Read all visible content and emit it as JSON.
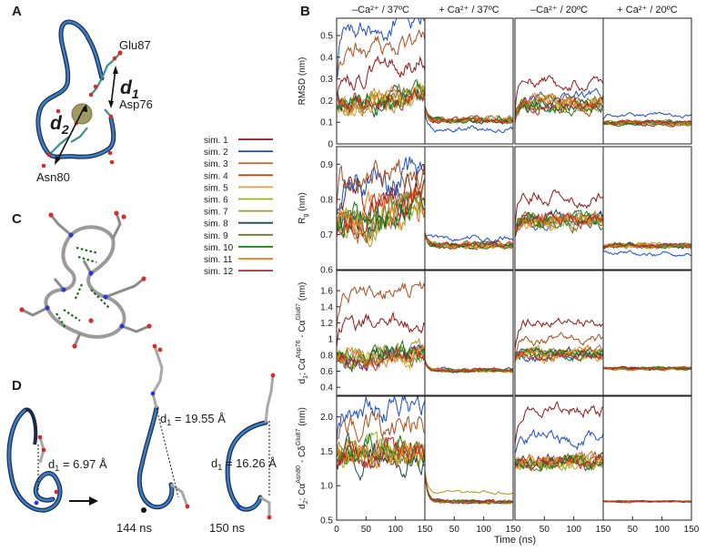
{
  "panel_labels": {
    "A": "A",
    "B": "B",
    "C": "C",
    "D": "D"
  },
  "panel_a": {
    "residues": [
      "Glu87",
      "Asp76",
      "Asn80"
    ],
    "distance_labels": {
      "d1_main": "d",
      "d1_sub": "1",
      "d2_main": "d",
      "d2_sub": "2"
    }
  },
  "panel_d": {
    "distances": [
      {
        "prefix": "d",
        "sub": "1",
        "value": " = 6.97 Å"
      },
      {
        "prefix": "d",
        "sub": "1",
        "value": " = 19.55 Å"
      },
      {
        "prefix": "d",
        "sub": "1",
        "value": " = 16.26 Å"
      }
    ],
    "times": [
      "144 ns",
      "150 ns"
    ]
  },
  "legend": [
    {
      "label": "sim. 1",
      "color": "#8b1a1a"
    },
    {
      "label": "sim. 2",
      "color": "#1f4fbf"
    },
    {
      "label": "sim. 3",
      "color": "#c0703a"
    },
    {
      "label": "sim. 4",
      "color": "#a4501f"
    },
    {
      "label": "sim. 5",
      "color": "#e0a030"
    },
    {
      "label": "sim. 6",
      "color": "#9ab030"
    },
    {
      "label": "sim. 7",
      "color": "#a89a2a"
    },
    {
      "label": "sim. 8",
      "color": "#1f4a4a"
    },
    {
      "label": "sim. 9",
      "color": "#6a7a2a"
    },
    {
      "label": "sim. 10",
      "color": "#1a7a1a"
    },
    {
      "label": "sim. 11",
      "color": "#f07a1a"
    },
    {
      "label": "sim. 12",
      "color": "#b02a2a"
    }
  ],
  "chart_data": {
    "type": "line",
    "title": "",
    "column_titles": [
      "–Ca²⁺ / 37ºC",
      "+ Ca²⁺ / 37ºC",
      "–Ca²⁺ / 20ºC",
      "+ Ca²⁺ / 20ºC"
    ],
    "xlabel": "Time (ns)",
    "xlim": [
      0,
      150
    ],
    "xticks_first": [
      "0",
      "50",
      "100",
      "150"
    ],
    "xticks_other": [
      "50",
      "100",
      "150"
    ],
    "n_series": 12,
    "rows": [
      {
        "ylabel": "RMSD (nm)",
        "ylim": [
          0,
          0.58
        ],
        "yticks": [
          "0",
          "0.1",
          "0.2",
          "0.3",
          "0.4",
          "0.5"
        ],
        "ytick_values": [
          0,
          0.1,
          0.2,
          0.3,
          0.4,
          0.5
        ],
        "panels": [
          {
            "start": 0.2,
            "mean": 0.24,
            "spread": 0.07,
            "drift": 0.1,
            "noise": 0.03,
            "outliers": [
              [
                1,
                0.55
              ],
              [
                3,
                0.45
              ],
              [
                0,
                0.35
              ]
            ]
          },
          {
            "start": 0.2,
            "mean": 0.12,
            "spread": 0.025,
            "drift": 0,
            "noise": 0.008,
            "outliers": [
              [
                1,
                0.07
              ]
            ]
          },
          {
            "start": 0.07,
            "mean": 0.2,
            "spread": 0.045,
            "drift": 0,
            "noise": 0.018,
            "outliers": [
              [
                0,
                0.28
              ],
              [
                1,
                0.22
              ]
            ]
          },
          {
            "start": 0.1,
            "mean": 0.1,
            "spread": 0.012,
            "drift": 0,
            "noise": 0.006,
            "outliers": [
              [
                1,
                0.13
              ]
            ]
          }
        ]
      },
      {
        "ylabel": "Rg (nm)",
        "ylim": [
          0.6,
          0.95
        ],
        "yticks": [
          "0.6",
          "0.7",
          "0.8",
          "0.9"
        ],
        "ytick_values": [
          0.6,
          0.7,
          0.8,
          0.9
        ],
        "panels": [
          {
            "start": 0.72,
            "mean": 0.75,
            "spread": 0.04,
            "drift": 0.06,
            "noise": 0.03,
            "outliers": [
              [
                3,
                0.88
              ],
              [
                1,
                0.85
              ],
              [
                0,
                0.82
              ]
            ]
          },
          {
            "start": 0.72,
            "mean": 0.665,
            "spread": 0.012,
            "drift": 0,
            "noise": 0.005,
            "outliers": [
              [
                1,
                0.69
              ]
            ]
          },
          {
            "start": 0.68,
            "mean": 0.73,
            "spread": 0.025,
            "drift": 0,
            "noise": 0.012,
            "outliers": [
              [
                0,
                0.81
              ]
            ]
          },
          {
            "start": 0.66,
            "mean": 0.665,
            "spread": 0.008,
            "drift": 0,
            "noise": 0.004,
            "outliers": [
              [
                1,
                0.645
              ]
            ]
          }
        ]
      },
      {
        "ylabel": "d1; Cα Asp76 - Cα Glu87 (nm)",
        "ylabel_parts": {
          "main": "d",
          "sub": "1",
          "mid": "; Cα",
          "sup1": "Asp76",
          "dash": " - Cα",
          "sup2": "Glu87",
          "unit": " (nm)"
        },
        "ylim": [
          0.3,
          1.85
        ],
        "yticks": [
          "0.4",
          "0.6",
          "0.8",
          "1",
          "1.2",
          "1.4",
          "1.6"
        ],
        "ytick_values": [
          0.4,
          0.6,
          0.8,
          1.0,
          1.2,
          1.4,
          1.6
        ],
        "panels": [
          {
            "start": 0.8,
            "mean": 0.95,
            "spread": 0.16,
            "drift": 0.12,
            "noise": 0.07,
            "outliers": [
              [
                3,
                1.6
              ],
              [
                0,
                1.2
              ]
            ]
          },
          {
            "start": 0.8,
            "mean": 0.63,
            "spread": 0.02,
            "drift": 0,
            "noise": 0.012,
            "outliers": []
          },
          {
            "start": 0.7,
            "mean": 0.9,
            "spread": 0.11,
            "drift": 0,
            "noise": 0.04,
            "outliers": [
              [
                0,
                1.2
              ],
              [
                3,
                1.0
              ]
            ]
          },
          {
            "start": 0.65,
            "mean": 0.65,
            "spread": 0.02,
            "drift": 0,
            "noise": 0.01,
            "outliers": []
          }
        ]
      },
      {
        "ylabel": "d2; Cα Asn80 - Cδ Glu87 (nm)",
        "ylabel_parts": {
          "main": "d",
          "sub": "2",
          "mid": "; Cα",
          "sup1": "Asn80",
          "dash": " - Cδ",
          "sup2": "Glu87",
          "unit": " (nm)"
        },
        "ylim": [
          0.5,
          2.3
        ],
        "yticks": [
          "0.5",
          "1.0",
          "1.5",
          "2.0"
        ],
        "ytick_values": [
          0.5,
          1.0,
          1.5,
          2.0
        ],
        "panels": [
          {
            "start": 1.4,
            "mean": 1.5,
            "spread": 0.2,
            "drift": 0,
            "noise": 0.12,
            "outliers": [
              [
                1,
                2.1
              ],
              [
                3,
                1.9
              ]
            ]
          },
          {
            "start": 1.4,
            "mean": 0.77,
            "spread": 0.03,
            "drift": 0,
            "noise": 0.015,
            "outliers": [
              [
                6,
                0.9
              ]
            ]
          },
          {
            "start": 1.3,
            "mean": 1.35,
            "spread": 0.15,
            "drift": 0.05,
            "noise": 0.06,
            "outliers": [
              [
                0,
                2.12
              ],
              [
                1,
                1.7
              ]
            ]
          },
          {
            "start": 0.78,
            "mean": 0.77,
            "spread": 0.012,
            "drift": 0,
            "noise": 0.006,
            "outliers": []
          }
        ]
      }
    ]
  }
}
